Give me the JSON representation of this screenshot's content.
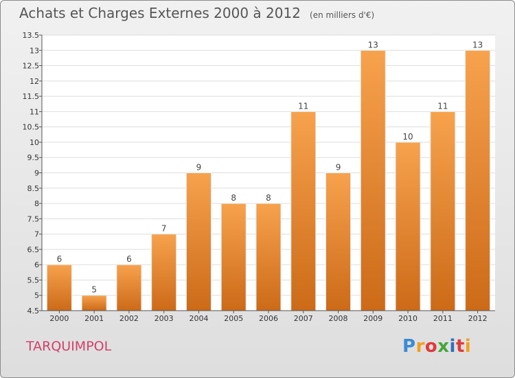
{
  "title": "Achats et Charges Externes 2000 à 2012",
  "subtitle": "(en milliers d'€)",
  "commune": "TARQUIMPOL",
  "logo": {
    "p": "P",
    "r": "r",
    "o": "o",
    "x": "x",
    "i": "i",
    "t": "t",
    "i2": "i"
  },
  "colors": {
    "bar_top": "#f7a24d",
    "bar_bottom": "#cc6a18",
    "title": "#555555",
    "commune": "#d2406a"
  },
  "chart_data": {
    "type": "bar",
    "title": "Achats et Charges Externes 2000 à 2012",
    "subtitle": "(en milliers d'€)",
    "categories": [
      "2000",
      "2001",
      "2002",
      "2003",
      "2004",
      "2005",
      "2006",
      "2007",
      "2008",
      "2009",
      "2010",
      "2011",
      "2012"
    ],
    "values": [
      6,
      5,
      6,
      7,
      9,
      8,
      8,
      11,
      9,
      13,
      10,
      11,
      13
    ],
    "ylim": [
      4.5,
      13.5
    ],
    "yticks": [
      "4.5",
      "5",
      "5.5",
      "6",
      "6.5",
      "7",
      "7.5",
      "8",
      "8.5",
      "9",
      "9.5",
      "10",
      "10.5",
      "11",
      "11.5",
      "12",
      "12.5",
      "13",
      "13.5"
    ],
    "grid": true,
    "xlabel": "",
    "ylabel": ""
  }
}
